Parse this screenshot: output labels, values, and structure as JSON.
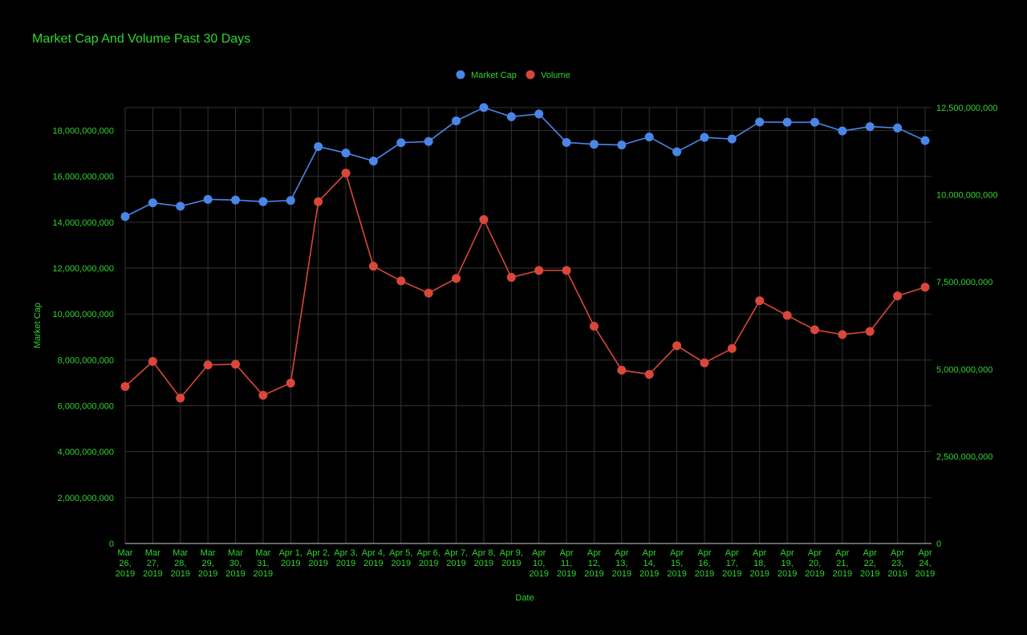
{
  "chart_data": {
    "type": "line",
    "title": "Market Cap And Volume Past 30 Days",
    "xlabel": "Date",
    "ylabel": "Market Cap",
    "y2label": "",
    "ylim": [
      0,
      19000000000
    ],
    "y2lim": [
      0,
      12500000000
    ],
    "y_ticks": [
      "0",
      "2,000,000,000",
      "4,000,000,000",
      "6,000,000,000",
      "8,000,000,000",
      "10,000,000,000",
      "12,000,000,000",
      "14,000,000,000",
      "16,000,000,000",
      "18,000,000,000"
    ],
    "y2_ticks": [
      "0",
      "2,500,000,000",
      "5,000,000,000",
      "7,500,000,000",
      "10,000,000,000",
      "12,500,000,000"
    ],
    "grid": true,
    "legend_position": "top",
    "colors": {
      "text": "#2fd62f",
      "grid": "#333333",
      "market_cap": "#4a86e8",
      "volume": "#d9473b"
    },
    "categories": [
      [
        "Mar",
        "26,",
        "2019"
      ],
      [
        "Mar",
        "27,",
        "2019"
      ],
      [
        "Mar",
        "28,",
        "2019"
      ],
      [
        "Mar",
        "29,",
        "2019"
      ],
      [
        "Mar",
        "30,",
        "2019"
      ],
      [
        "Mar",
        "31,",
        "2019"
      ],
      [
        "Apr 1,",
        "2019"
      ],
      [
        "Apr 2,",
        "2019"
      ],
      [
        "Apr 3,",
        "2019"
      ],
      [
        "Apr 4,",
        "2019"
      ],
      [
        "Apr 5,",
        "2019"
      ],
      [
        "Apr 6,",
        "2019"
      ],
      [
        "Apr 7,",
        "2019"
      ],
      [
        "Apr 8,",
        "2019"
      ],
      [
        "Apr 9,",
        "2019"
      ],
      [
        "Apr",
        "10,",
        "2019"
      ],
      [
        "Apr",
        "11,",
        "2019"
      ],
      [
        "Apr",
        "12,",
        "2019"
      ],
      [
        "Apr",
        "13,",
        "2019"
      ],
      [
        "Apr",
        "14,",
        "2019"
      ],
      [
        "Apr",
        "15,",
        "2019"
      ],
      [
        "Apr",
        "16,",
        "2019"
      ],
      [
        "Apr",
        "17,",
        "2019"
      ],
      [
        "Apr",
        "18,",
        "2019"
      ],
      [
        "Apr",
        "19,",
        "2019"
      ],
      [
        "Apr",
        "20,",
        "2019"
      ],
      [
        "Apr",
        "21,",
        "2019"
      ],
      [
        "Apr",
        "22,",
        "2019"
      ],
      [
        "Apr",
        "23,",
        "2019"
      ],
      [
        "Apr",
        "24,",
        "2019"
      ]
    ],
    "series": [
      {
        "name": "Market Cap",
        "axis": "left",
        "values": [
          14250000000,
          14850000000,
          14700000000,
          15000000000,
          14970000000,
          14900000000,
          14950000000,
          17300000000,
          17020000000,
          16670000000,
          17470000000,
          17520000000,
          18420000000,
          19000000000,
          18600000000,
          18720000000,
          17480000000,
          17400000000,
          17370000000,
          17720000000,
          17070000000,
          17700000000,
          17630000000,
          18370000000,
          18360000000,
          18360000000,
          17980000000,
          18170000000,
          18110000000,
          17560000000
        ]
      },
      {
        "name": "Volume",
        "axis": "right",
        "values": [
          4500000000,
          5220000000,
          4170000000,
          5120000000,
          5140000000,
          4250000000,
          4600000000,
          9800000000,
          10620000000,
          7950000000,
          7530000000,
          7180000000,
          7600000000,
          9290000000,
          7630000000,
          7830000000,
          7830000000,
          6230000000,
          4970000000,
          4850000000,
          5670000000,
          5180000000,
          5590000000,
          6960000000,
          6540000000,
          6130000000,
          5990000000,
          6080000000,
          7100000000,
          7350000000
        ]
      }
    ]
  }
}
